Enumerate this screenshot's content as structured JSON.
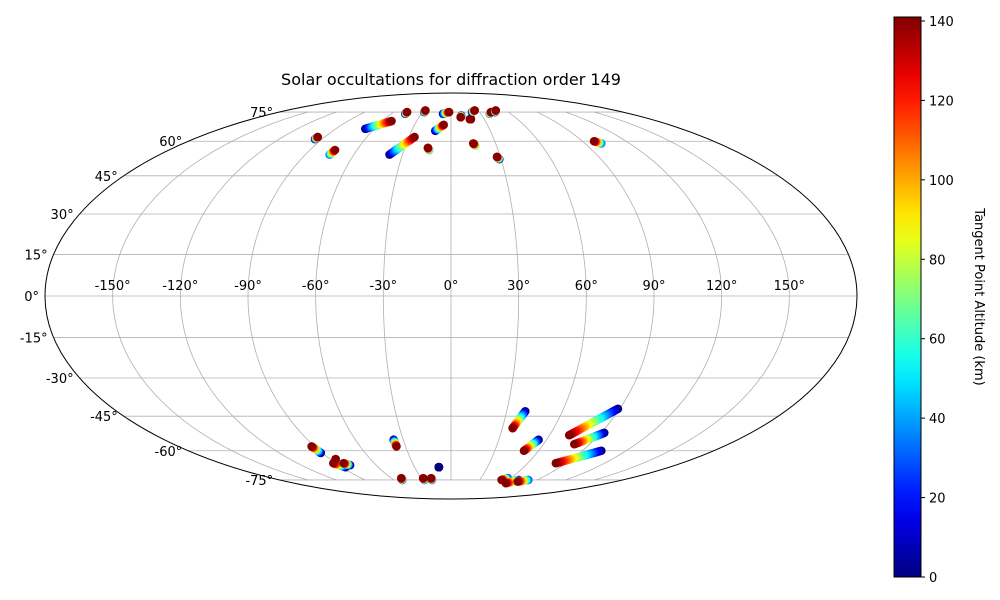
{
  "chart_data": {
    "type": "scatter",
    "title": "Solar occultations for diffraction order 149",
    "projection": "mollweide",
    "grid": true,
    "xlabel": "",
    "ylabel": "",
    "xlim": [
      -180,
      180
    ],
    "ylim": [
      -90,
      90
    ],
    "longitude_ticks": [
      -150,
      -120,
      -90,
      -60,
      -30,
      0,
      30,
      60,
      90,
      120,
      150
    ],
    "latitude_ticks": [
      -75,
      -60,
      -45,
      -30,
      -15,
      0,
      15,
      30,
      45,
      60,
      75
    ],
    "longitude_tick_labels": [
      "-150°",
      "-120°",
      "-90°",
      "-60°",
      "-30°",
      "0°",
      "30°",
      "60°",
      "90°",
      "120°",
      "150°"
    ],
    "latitude_tick_labels": [
      "-75°",
      "-60°",
      "-45°",
      "-30°",
      "-15°",
      "0°",
      "15°",
      "30°",
      "45°",
      "60°",
      "75°"
    ],
    "colorbar": {
      "label": "Tangent Point Altitude (km)",
      "colormap": "jet",
      "range": [
        0,
        141
      ],
      "ticks": [
        0,
        20,
        40,
        60,
        80,
        100,
        120,
        140
      ],
      "tick_labels": [
        "0",
        "20",
        "40",
        "60",
        "80",
        "100",
        "120",
        "140"
      ]
    },
    "tracks": [
      {
        "start": [
          -95,
          61
        ],
        "end": [
          -95,
          62
        ],
        "alt": [
          0,
          140
        ]
      },
      {
        "start": [
          -75,
          54
        ],
        "end": [
          -74,
          56
        ],
        "alt": [
          30,
          140
        ]
      },
      {
        "start": [
          -67,
          66
        ],
        "end": [
          -52,
          70
        ],
        "alt": [
          0,
          140
        ]
      },
      {
        "start": [
          -46,
          74
        ],
        "end": [
          -46,
          75
        ],
        "alt": [
          0,
          140
        ]
      },
      {
        "start": [
          -28,
          75
        ],
        "end": [
          -28,
          76
        ],
        "alt": [
          0,
          140
        ]
      },
      {
        "start": [
          -38,
          54
        ],
        "end": [
          -26,
          62
        ],
        "alt": [
          0,
          140
        ]
      },
      {
        "start": [
          -14,
          56
        ],
        "end": [
          -15,
          57
        ],
        "alt": [
          40,
          140
        ]
      },
      {
        "start": [
          -12,
          65
        ],
        "end": [
          -6,
          68
        ],
        "alt": [
          0,
          140
        ]
      },
      {
        "start": [
          -8,
          74
        ],
        "end": [
          -2,
          75
        ],
        "alt": [
          0,
          140
        ]
      },
      {
        "start": [
          10,
          73
        ],
        "end": [
          9,
          72
        ],
        "alt": [
          0,
          140
        ]
      },
      {
        "start": [
          16,
          58
        ],
        "end": [
          15,
          59
        ],
        "alt": [
          60,
          140
        ]
      },
      {
        "start": [
          17,
          71
        ],
        "end": [
          18,
          71
        ],
        "alt": [
          140,
          140
        ]
      },
      {
        "start": [
          22,
          75
        ],
        "end": [
          26,
          76
        ],
        "alt": [
          0,
          140
        ]
      },
      {
        "start": [
          29,
          52
        ],
        "end": [
          28,
          53
        ],
        "alt": [
          10,
          140
        ]
      },
      {
        "start": [
          39,
          74
        ],
        "end": [
          42,
          75
        ],
        "alt": [
          30,
          140
        ]
      },
      {
        "start": [
          46,
          75
        ],
        "end": [
          49,
          76
        ],
        "alt": [
          0,
          140
        ]
      },
      {
        "start": [
          101,
          59
        ],
        "end": [
          98,
          60
        ],
        "alt": [
          30,
          140
        ]
      },
      {
        "start": [
          -91,
          -61
        ],
        "end": [
          -92,
          -58
        ],
        "alt": [
          0,
          140
        ]
      },
      {
        "start": [
          -87,
          -68
        ],
        "end": [
          -92,
          -66
        ],
        "alt": [
          0,
          140
        ]
      },
      {
        "start": [
          -86,
          -64
        ],
        "end": [
          -86,
          -64
        ],
        "alt": [
          10,
          140
        ]
      },
      {
        "start": [
          -81,
          -67
        ],
        "end": [
          -84,
          -66
        ],
        "alt": [
          0,
          140
        ]
      },
      {
        "start": [
          -51,
          -75
        ],
        "end": [
          -50,
          -74
        ],
        "alt": [
          20,
          140
        ]
      },
      {
        "start": [
          -36,
          -55
        ],
        "end": [
          -36,
          -58
        ],
        "alt": [
          0,
          140
        ]
      },
      {
        "start": [
          -28,
          -75
        ],
        "end": [
          -28,
          -74
        ],
        "alt": [
          20,
          140
        ]
      },
      {
        "start": [
          -20,
          -75
        ],
        "end": [
          -20,
          -74
        ],
        "alt": [
          20,
          140
        ]
      },
      {
        "start": [
          -10,
          -68
        ],
        "end": [
          -10,
          -68
        ],
        "alt": [
          0,
          0
        ]
      },
      {
        "start": [
          40,
          -43
        ],
        "end": [
          36,
          -50
        ],
        "alt": [
          0,
          140
        ]
      },
      {
        "start": [
          55,
          -55
        ],
        "end": [
          50,
          -60
        ],
        "alt": [
          0,
          140
        ]
      },
      {
        "start": [
          57,
          -74
        ],
        "end": [
          53,
          -75
        ],
        "alt": [
          20,
          140
        ]
      },
      {
        "start": [
          71,
          -75
        ],
        "end": [
          63,
          -77
        ],
        "alt": [
          20,
          140
        ]
      },
      {
        "start": [
          81,
          -75
        ],
        "end": [
          73,
          -76
        ],
        "alt": [
          30,
          140
        ]
      },
      {
        "start": [
          89,
          -42
        ],
        "end": [
          72,
          -53
        ],
        "alt": [
          0,
          140
        ]
      },
      {
        "start": [
          92,
          -52
        ],
        "end": [
          80,
          -57
        ],
        "alt": [
          0,
          140
        ]
      },
      {
        "start": [
          103,
          -60
        ],
        "end": [
          82,
          -66
        ],
        "alt": [
          0,
          140
        ]
      }
    ]
  }
}
